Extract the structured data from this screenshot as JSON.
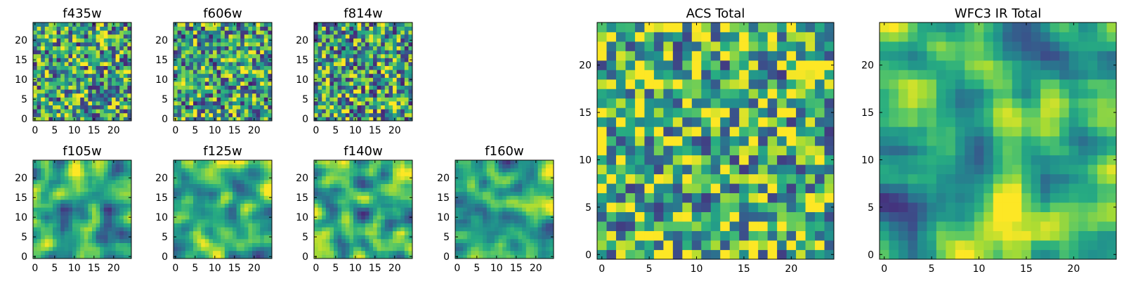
{
  "colors": {
    "colormap": "viridis",
    "axis": "#000000",
    "background": "#ffffff"
  },
  "chart_data": [
    {
      "type": "heatmap",
      "title": "f435w",
      "grid_size": 25,
      "xlim": [
        0,
        24
      ],
      "ylim": [
        0,
        24
      ],
      "xticks": [
        "0",
        "5",
        "10",
        "15",
        "20"
      ],
      "yticks": [
        "0",
        "5",
        "10",
        "15",
        "20"
      ],
      "texture": "fine",
      "mean": 0.58
    },
    {
      "type": "heatmap",
      "title": "f606w",
      "grid_size": 25,
      "xlim": [
        0,
        24
      ],
      "ylim": [
        0,
        24
      ],
      "xticks": [
        "0",
        "5",
        "10",
        "15",
        "20"
      ],
      "yticks": [
        "0",
        "5",
        "10",
        "15",
        "20"
      ],
      "texture": "fine",
      "mean": 0.56
    },
    {
      "type": "heatmap",
      "title": "f814w",
      "grid_size": 25,
      "xlim": [
        0,
        24
      ],
      "ylim": [
        0,
        24
      ],
      "xticks": [
        "0",
        "5",
        "10",
        "15",
        "20"
      ],
      "yticks": [
        "0",
        "5",
        "10",
        "15",
        "20"
      ],
      "texture": "fine",
      "mean": 0.57
    },
    {
      "type": "heatmap",
      "title": "f105w",
      "grid_size": 25,
      "xlim": [
        0,
        24
      ],
      "ylim": [
        0,
        24
      ],
      "xticks": [
        "0",
        "5",
        "10",
        "15",
        "20"
      ],
      "yticks": [
        "0",
        "5",
        "10",
        "15",
        "20"
      ],
      "texture": "smooth",
      "mean": 0.62
    },
    {
      "type": "heatmap",
      "title": "f125w",
      "grid_size": 25,
      "xlim": [
        0,
        24
      ],
      "ylim": [
        0,
        24
      ],
      "xticks": [
        "0",
        "5",
        "10",
        "15",
        "20"
      ],
      "yticks": [
        "0",
        "5",
        "10",
        "15",
        "20"
      ],
      "texture": "smooth",
      "mean": 0.64
    },
    {
      "type": "heatmap",
      "title": "f140w",
      "grid_size": 25,
      "xlim": [
        0,
        24
      ],
      "ylim": [
        0,
        24
      ],
      "xticks": [
        "0",
        "5",
        "10",
        "15",
        "20"
      ],
      "yticks": [
        "0",
        "5",
        "10",
        "15",
        "20"
      ],
      "texture": "smooth",
      "mean": 0.6
    },
    {
      "type": "heatmap",
      "title": "f160w",
      "grid_size": 25,
      "xlim": [
        0,
        24
      ],
      "ylim": [
        0,
        24
      ],
      "xticks": [
        "0",
        "5",
        "10",
        "15",
        "20"
      ],
      "yticks": [
        "0",
        "5",
        "10",
        "15",
        "20"
      ],
      "texture": "smooth",
      "mean": 0.62
    },
    {
      "type": "heatmap",
      "title": "ACS Total",
      "grid_size": 25,
      "xlim": [
        0,
        24
      ],
      "ylim": [
        0,
        24
      ],
      "xticks": [
        "0",
        "5",
        "10",
        "15",
        "20"
      ],
      "yticks": [
        "0",
        "5",
        "10",
        "15",
        "20"
      ],
      "texture": "fine",
      "mean": 0.65
    },
    {
      "type": "heatmap",
      "title": "WFC3 IR Total",
      "grid_size": 25,
      "xlim": [
        0,
        24
      ],
      "ylim": [
        0,
        24
      ],
      "xticks": [
        "0",
        "5",
        "10",
        "15",
        "20"
      ],
      "yticks": [
        "0",
        "5",
        "10",
        "15",
        "20"
      ],
      "texture": "smooth",
      "mean": 0.63
    }
  ]
}
